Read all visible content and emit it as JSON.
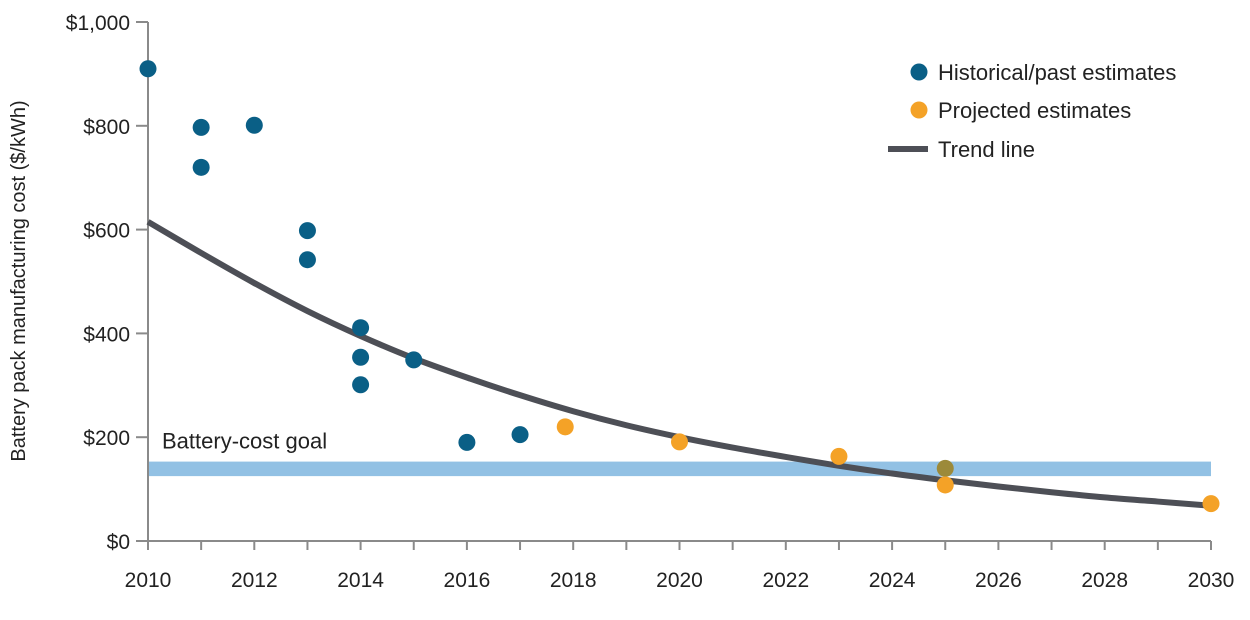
{
  "chart_data": {
    "type": "scatter",
    "xlabel": "",
    "ylabel": "Battery pack manufacturing cost ($/kWh)",
    "xlim": [
      2010,
      2030
    ],
    "ylim": [
      0,
      1000
    ],
    "x_ticks": [
      2010,
      2012,
      2014,
      2016,
      2018,
      2020,
      2022,
      2024,
      2026,
      2028,
      2030
    ],
    "x_tick_labels": [
      "2010",
      "2012",
      "2014",
      "2016",
      "2018",
      "2020",
      "2022",
      "2024",
      "2026",
      "2028",
      "2030"
    ],
    "y_ticks": [
      0,
      200,
      400,
      600,
      800,
      1000
    ],
    "y_tick_labels": [
      "$0",
      "$200",
      "$400",
      "$600",
      "$800",
      "$1,000"
    ],
    "grid": false,
    "legend_position": "top-right",
    "series": [
      {
        "name": "Historical/past estimates",
        "kind": "scatter",
        "color": "#0a5f86",
        "points": [
          {
            "x": 2010,
            "y": 910
          },
          {
            "x": 2011,
            "y": 797
          },
          {
            "x": 2011,
            "y": 720
          },
          {
            "x": 2012,
            "y": 801
          },
          {
            "x": 2013,
            "y": 598
          },
          {
            "x": 2013,
            "y": 542
          },
          {
            "x": 2014,
            "y": 411
          },
          {
            "x": 2014,
            "y": 354
          },
          {
            "x": 2014,
            "y": 301
          },
          {
            "x": 2015,
            "y": 349
          },
          {
            "x": 2016,
            "y": 190
          },
          {
            "x": 2017,
            "y": 205
          }
        ]
      },
      {
        "name": "Projected estimates",
        "kind": "scatter",
        "color": "#f4a227",
        "points": [
          {
            "x": 2017.85,
            "y": 220
          },
          {
            "x": 2020,
            "y": 191
          },
          {
            "x": 2023,
            "y": 163
          },
          {
            "x": 2025,
            "y": 140
          },
          {
            "x": 2025,
            "y": 108
          },
          {
            "x": 2030,
            "y": 72
          }
        ]
      },
      {
        "name": "Trend line",
        "kind": "line",
        "color": "#4d4f56",
        "points": [
          {
            "x": 2010,
            "y": 615
          },
          {
            "x": 2011,
            "y": 555
          },
          {
            "x": 2012,
            "y": 497
          },
          {
            "x": 2013,
            "y": 443
          },
          {
            "x": 2014,
            "y": 395
          },
          {
            "x": 2015,
            "y": 352
          },
          {
            "x": 2016,
            "y": 315
          },
          {
            "x": 2017,
            "y": 281
          },
          {
            "x": 2018,
            "y": 250
          },
          {
            "x": 2019,
            "y": 223
          },
          {
            "x": 2020,
            "y": 200
          },
          {
            "x": 2021,
            "y": 180
          },
          {
            "x": 2022,
            "y": 162
          },
          {
            "x": 2023,
            "y": 145
          },
          {
            "x": 2024,
            "y": 130
          },
          {
            "x": 2025,
            "y": 117
          },
          {
            "x": 2026,
            "y": 105
          },
          {
            "x": 2027,
            "y": 94
          },
          {
            "x": 2028,
            "y": 84
          },
          {
            "x": 2029,
            "y": 76
          },
          {
            "x": 2030,
            "y": 68
          }
        ]
      }
    ],
    "goal_band": {
      "label": "Battery-cost goal",
      "y_low": 125,
      "y_high": 153,
      "color": "#92c1e4"
    },
    "colors": {
      "axis": "#8a8a8a",
      "historical": "#0a5f86",
      "projected": "#f4a227",
      "trend": "#4d4f56",
      "goal": "#92c1e4",
      "overlap": "#9c8a3a"
    }
  }
}
